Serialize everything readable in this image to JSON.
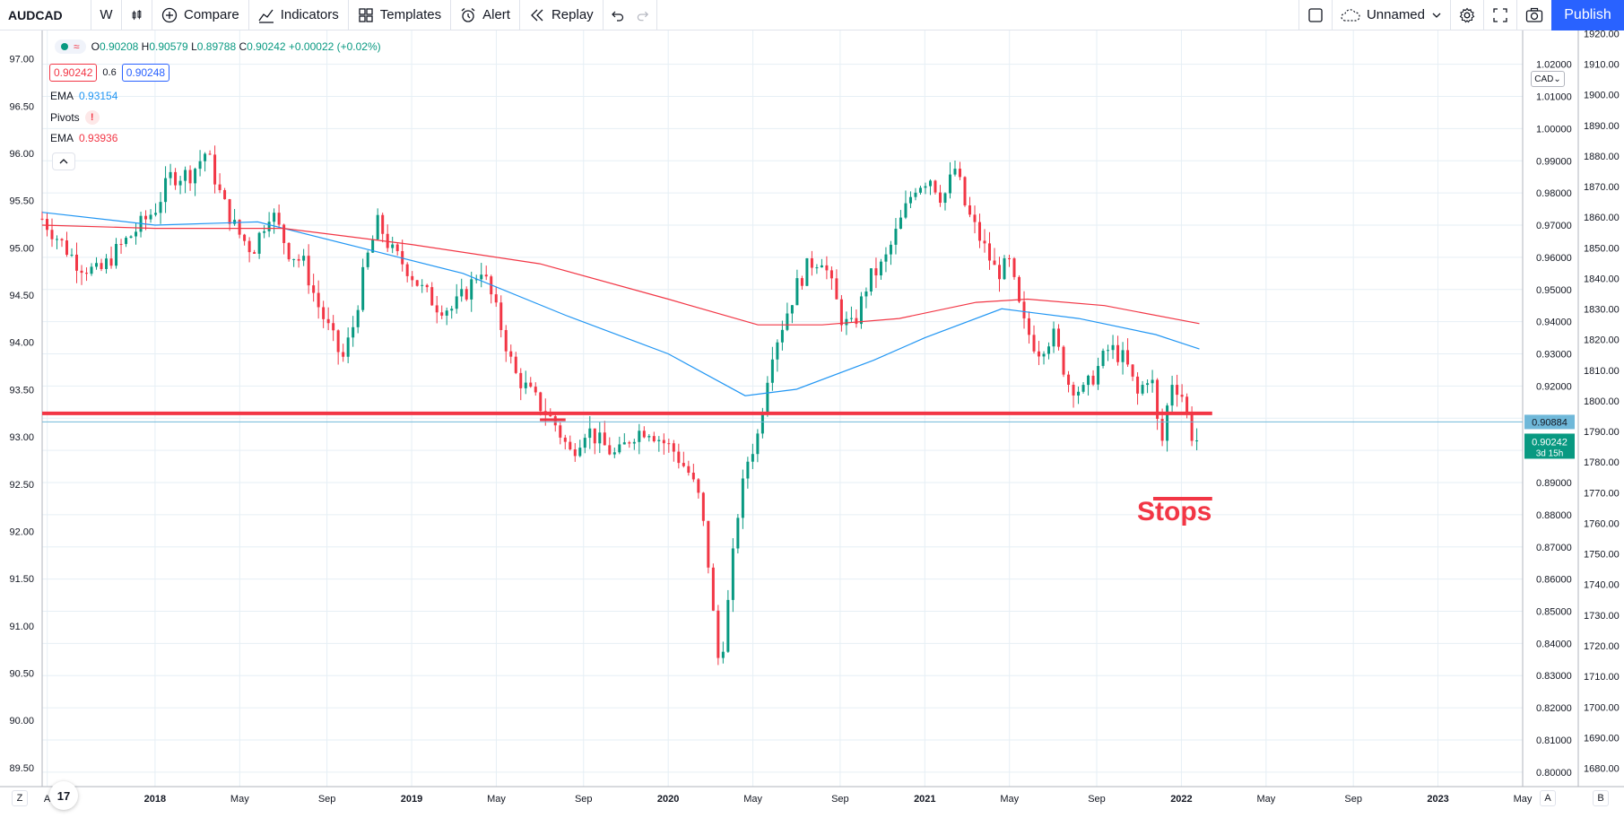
{
  "toolbar": {
    "symbol": "AUDCAD",
    "interval": "W",
    "compare_label": "Compare",
    "indicators_label": "Indicators",
    "templates_label": "Templates",
    "alert_label": "Alert",
    "replay_label": "Replay",
    "layout_name": "Unnamed",
    "publish_label": "Publish"
  },
  "legend": {
    "open_key": "O",
    "open": "0.90208",
    "high_key": "H",
    "high": "0.90579",
    "low_key": "L",
    "low": "0.89788",
    "close_key": "C",
    "close": "0.90242",
    "change": "+0.00022 (+0.02%)",
    "sell_price": "0.90242",
    "spread": "0.6",
    "buy_price": "0.90248",
    "ema1_label": "EMA",
    "ema1_value": "0.93154",
    "pivots_label": "Pivots",
    "pivots_alert": "!",
    "ema2_label": "EMA",
    "ema2_value": "0.93936"
  },
  "colors": {
    "up": "#089981",
    "down": "#f23645",
    "ema_fast": "#2196f3",
    "ema_slow": "#f23645",
    "level_line": "#f23645",
    "grid": "#e6eff5",
    "axis_text": "#131722",
    "price_line": "#6fb8d9"
  },
  "annotations": {
    "stops_text": "Stops",
    "cad_label": "CAD",
    "last_price_badge": "0.90242",
    "countdown": "3d 15h",
    "line_price_badge": "0.90884"
  },
  "corner": {
    "left_btn": "Z",
    "auto_btn": "A",
    "right_btn": "B"
  },
  "chart_data": {
    "type": "candlestick",
    "symbol": "AUDCAD",
    "interval": "W",
    "x_ticks": [
      "Aug",
      "2018",
      "May",
      "Sep",
      "2019",
      "May",
      "Sep",
      "2020",
      "May",
      "Sep",
      "2021",
      "May",
      "Sep",
      "2022",
      "May",
      "Sep",
      "2023",
      "May"
    ],
    "x_tick_dates": [
      2017.58,
      2018.0,
      2018.33,
      2018.67,
      2019.0,
      2019.33,
      2019.67,
      2020.0,
      2020.33,
      2020.67,
      2021.0,
      2021.33,
      2021.67,
      2022.0,
      2022.33,
      2022.67,
      2023.0,
      2023.33
    ],
    "x_range": [
      2017.56,
      2023.33
    ],
    "left_axis": {
      "ticks": [
        "97.00",
        "96.50",
        "96.00",
        "95.50",
        "95.00",
        "94.50",
        "94.00",
        "93.50",
        "93.00",
        "92.50",
        "92.00",
        "91.50",
        "91.00",
        "90.50",
        "90.00",
        "89.50"
      ],
      "range": [
        89.3,
        97.3
      ]
    },
    "mid_axis": {
      "ticks": [
        "1.02000",
        "1.01000",
        "1.00000",
        "0.99000",
        "0.98000",
        "0.97000",
        "0.96000",
        "0.95000",
        "0.94000",
        "0.93000",
        "0.92000",
        "0.91000",
        "0.90000",
        "0.89000",
        "0.88000",
        "0.87000",
        "0.86000",
        "0.85000",
        "0.84000",
        "0.83000",
        "0.82000",
        "0.81000",
        "0.80000"
      ],
      "range": [
        0.7955,
        1.0305
      ]
    },
    "right_axis": {
      "ticks": [
        "1920.00",
        "1910.00",
        "1900.00",
        "1890.00",
        "1880.00",
        "1870.00",
        "1860.00",
        "1850.00",
        "1840.00",
        "1830.00",
        "1820.00",
        "1810.00",
        "1800.00",
        "1790.00",
        "1780.00",
        "1770.00",
        "1760.00",
        "1750.00",
        "1740.00",
        "1730.00",
        "1720.00",
        "1710.00",
        "1700.00",
        "1690.00",
        "1680.00"
      ],
      "range": [
        1674,
        1921
      ]
    },
    "price_path": [
      [
        2017.56,
        0.972
      ],
      [
        2017.62,
        0.966
      ],
      [
        2017.7,
        0.958
      ],
      [
        2017.78,
        0.955
      ],
      [
        2017.85,
        0.962
      ],
      [
        2017.92,
        0.968
      ],
      [
        2018.0,
        0.975
      ],
      [
        2018.06,
        0.985
      ],
      [
        2018.14,
        0.986
      ],
      [
        2018.2,
        0.993
      ],
      [
        2018.26,
        0.978
      ],
      [
        2018.32,
        0.968
      ],
      [
        2018.38,
        0.962
      ],
      [
        2018.45,
        0.975
      ],
      [
        2018.52,
        0.962
      ],
      [
        2018.58,
        0.958
      ],
      [
        2018.63,
        0.946
      ],
      [
        2018.68,
        0.937
      ],
      [
        2018.73,
        0.928
      ],
      [
        2018.77,
        0.938
      ],
      [
        2018.82,
        0.958
      ],
      [
        2018.87,
        0.971
      ],
      [
        2018.92,
        0.962
      ],
      [
        2018.98,
        0.957
      ],
      [
        2019.04,
        0.95
      ],
      [
        2019.1,
        0.945
      ],
      [
        2019.16,
        0.944
      ],
      [
        2019.22,
        0.95
      ],
      [
        2019.27,
        0.957
      ],
      [
        2019.31,
        0.948
      ],
      [
        2019.35,
        0.938
      ],
      [
        2019.4,
        0.924
      ],
      [
        2019.46,
        0.918
      ],
      [
        2019.52,
        0.912
      ],
      [
        2019.56,
        0.908
      ],
      [
        2019.62,
        0.899
      ],
      [
        2019.68,
        0.907
      ],
      [
        2019.74,
        0.902
      ],
      [
        2019.8,
        0.898
      ],
      [
        2019.86,
        0.905
      ],
      [
        2019.92,
        0.907
      ],
      [
        2019.96,
        0.904
      ],
      [
        2020.02,
        0.9
      ],
      [
        2020.08,
        0.893
      ],
      [
        2020.12,
        0.885
      ],
      [
        2020.15,
        0.87
      ],
      [
        2020.18,
        0.845
      ],
      [
        2020.2,
        0.832
      ],
      [
        2020.23,
        0.85
      ],
      [
        2020.27,
        0.88
      ],
      [
        2020.31,
        0.897
      ],
      [
        2020.35,
        0.905
      ],
      [
        2020.4,
        0.93
      ],
      [
        2020.44,
        0.938
      ],
      [
        2020.5,
        0.951
      ],
      [
        2020.55,
        0.958
      ],
      [
        2020.6,
        0.96
      ],
      [
        2020.64,
        0.95
      ],
      [
        2020.68,
        0.94
      ],
      [
        2020.72,
        0.938
      ],
      [
        2020.78,
        0.953
      ],
      [
        2020.84,
        0.958
      ],
      [
        2020.9,
        0.97
      ],
      [
        2020.96,
        0.982
      ],
      [
        2021.02,
        0.985
      ],
      [
        2021.07,
        0.978
      ],
      [
        2021.12,
        0.988
      ],
      [
        2021.16,
        0.975
      ],
      [
        2021.22,
        0.965
      ],
      [
        2021.28,
        0.955
      ],
      [
        2021.33,
        0.958
      ],
      [
        2021.38,
        0.94
      ],
      [
        2021.44,
        0.931
      ],
      [
        2021.5,
        0.936
      ],
      [
        2021.56,
        0.921
      ],
      [
        2021.62,
        0.918
      ],
      [
        2021.67,
        0.925
      ],
      [
        2021.72,
        0.932
      ],
      [
        2021.78,
        0.928
      ],
      [
        2021.83,
        0.917
      ],
      [
        2021.88,
        0.925
      ],
      [
        2021.92,
        0.9
      ],
      [
        2021.96,
        0.922
      ],
      [
        2022.0,
        0.918
      ],
      [
        2022.04,
        0.905
      ],
      [
        2022.07,
        0.9024
      ]
    ],
    "ema_fast_path": [
      [
        2017.56,
        0.974
      ],
      [
        2018.0,
        0.97
      ],
      [
        2018.4,
        0.971
      ],
      [
        2018.8,
        0.963
      ],
      [
        2019.2,
        0.955
      ],
      [
        2019.6,
        0.942
      ],
      [
        2020.0,
        0.93
      ],
      [
        2020.3,
        0.917
      ],
      [
        2020.5,
        0.919
      ],
      [
        2020.8,
        0.928
      ],
      [
        2021.0,
        0.935
      ],
      [
        2021.3,
        0.944
      ],
      [
        2021.6,
        0.941
      ],
      [
        2021.9,
        0.936
      ],
      [
        2022.07,
        0.9315
      ]
    ],
    "ema_slow_path": [
      [
        2017.56,
        0.97
      ],
      [
        2018.0,
        0.969
      ],
      [
        2018.5,
        0.969
      ],
      [
        2019.0,
        0.964
      ],
      [
        2019.5,
        0.958
      ],
      [
        2020.0,
        0.947
      ],
      [
        2020.35,
        0.939
      ],
      [
        2020.6,
        0.939
      ],
      [
        2020.9,
        0.941
      ],
      [
        2021.2,
        0.946
      ],
      [
        2021.4,
        0.947
      ],
      [
        2021.7,
        0.945
      ],
      [
        2022.07,
        0.9394
      ]
    ],
    "support_level": 0.9115,
    "last_price": 0.90242,
    "line_price": 0.90884,
    "stops_marker": {
      "x_start": 2021.89,
      "x_end": 2022.12,
      "price": 0.885,
      "label": "Stops"
    },
    "small_marker": {
      "x_start": 2019.5,
      "x_end": 2019.6,
      "price": 0.9095
    },
    "grid": true
  }
}
